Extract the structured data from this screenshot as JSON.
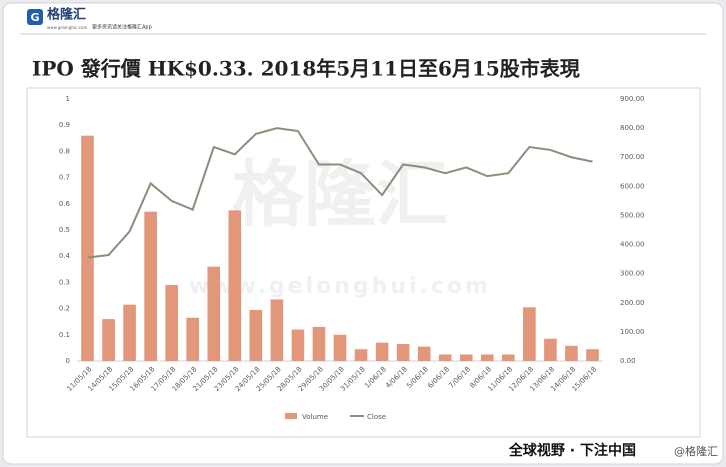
{
  "header": {
    "logo_text": "格隆汇",
    "logo_domain": "www.gelonghui.com",
    "tagline": "更多资讯请关注格隆汇App"
  },
  "chart_data": {
    "type": "combo",
    "title": "IPO 發行價 HK$0.33. 2018年5月11日至6月15股市表現",
    "watermark": "格隆汇",
    "watermark_url": "www.gelonghui.com",
    "categories": [
      "11/05/18",
      "14/05/18",
      "15/05/18",
      "16/05/18",
      "17/05/18",
      "18/05/18",
      "21/05/18",
      "23/05/18",
      "24/05/18",
      "25/05/18",
      "28/05/18",
      "29/05/18",
      "30/05/18",
      "31/05/18",
      "1/06/18",
      "4/06/18",
      "5/06/18",
      "6/06/18",
      "7/06/18",
      "8/06/18",
      "11/06/18",
      "12/06/18",
      "13/06/18",
      "14/06/18",
      "15/06/18"
    ],
    "series": [
      {
        "name": "Volume",
        "type": "bar",
        "color": "#e3977a",
        "values": [
          0.86,
          0.16,
          0.215,
          0.57,
          0.29,
          0.165,
          0.36,
          0.575,
          0.195,
          0.235,
          0.12,
          0.13,
          0.1,
          0.045,
          0.07,
          0.065,
          0.055,
          0.025,
          0.025,
          0.025,
          0.025,
          0.205,
          0.085,
          0.058,
          0.045
        ]
      },
      {
        "name": "Close",
        "type": "line",
        "axis": "y2",
        "color": "#83927a",
        "values": [
          355,
          364,
          445,
          610,
          550,
          520,
          735,
          710,
          780,
          800,
          790,
          675,
          675,
          645,
          570,
          675,
          665,
          645,
          665,
          635,
          645,
          735,
          725,
          700,
          685
        ]
      }
    ],
    "ylim": [
      0,
      1
    ],
    "yticks": [
      0,
      0.1,
      0.2,
      0.3,
      0.4,
      0.5,
      0.6,
      0.7,
      0.8,
      0.9,
      1
    ],
    "y2lim": [
      0,
      900
    ],
    "y2ticks": [
      {
        "value": 0,
        "label": "0.00"
      },
      {
        "value": 100,
        "label": "100.00"
      },
      {
        "value": 200,
        "label": "200.00"
      },
      {
        "value": 300,
        "label": "300.00"
      },
      {
        "value": 400,
        "label": "400.00"
      },
      {
        "value": 500,
        "label": "500.00"
      },
      {
        "value": 600,
        "label": "600.00"
      },
      {
        "value": 700,
        "label": "700.00"
      },
      {
        "value": 800,
        "label": "800.00"
      },
      {
        "value": 900,
        "label": "900.00"
      }
    ],
    "legend": "bottom"
  },
  "footer": {
    "slogan": "全球视野 · 下注中国",
    "watermark": "@格隆汇"
  }
}
